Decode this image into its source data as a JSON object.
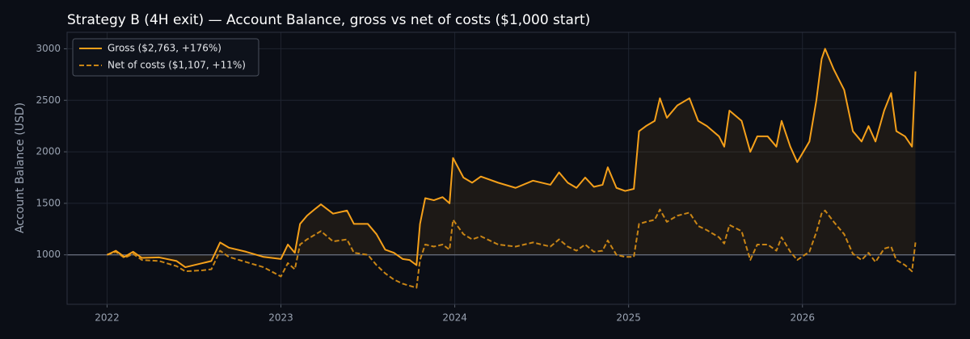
{
  "chart_data": {
    "type": "line",
    "title": "Strategy B (4H exit) — Account Balance, gross vs net of costs ($1,000 start)",
    "y_label": "Account Balance (USD)",
    "x": [
      2022.0,
      2022.05,
      2022.1,
      2022.15,
      2022.2,
      2022.3,
      2022.4,
      2022.45,
      2022.55,
      2022.6,
      2022.65,
      2022.7,
      2022.8,
      2022.9,
      2023.0,
      2023.04,
      2023.08,
      2023.11,
      2023.15,
      2023.2,
      2023.23,
      2023.3,
      2023.38,
      2023.42,
      2023.5,
      2023.55,
      2023.6,
      2023.65,
      2023.7,
      2023.74,
      2023.78,
      2023.8,
      2023.83,
      2023.88,
      2023.93,
      2023.97,
      2023.99,
      2024.05,
      2024.1,
      2024.15,
      2024.25,
      2024.35,
      2024.45,
      2024.55,
      2024.6,
      2024.65,
      2024.7,
      2024.75,
      2024.8,
      2024.85,
      2024.88,
      2024.93,
      2024.98,
      2025.03,
      2025.06,
      2025.1,
      2025.15,
      2025.18,
      2025.22,
      2025.28,
      2025.35,
      2025.4,
      2025.45,
      2025.52,
      2025.55,
      2025.58,
      2025.65,
      2025.7,
      2025.74,
      2025.8,
      2025.85,
      2025.88,
      2025.93,
      2025.97,
      2026.04,
      2026.08,
      2026.11,
      2026.13,
      2026.18,
      2026.24,
      2026.29,
      2026.34,
      2026.38,
      2026.42,
      2026.47,
      2026.51,
      2026.54,
      2026.59,
      2026.63,
      2026.65
    ],
    "series": [
      {
        "name": "Gross ($2,763, +176%)",
        "color": "#f5a01a",
        "dash": false,
        "fill": true,
        "values": [
          1000,
          1040,
          980,
          1030,
          970,
          975,
          940,
          880,
          920,
          940,
          1120,
          1070,
          1030,
          980,
          960,
          1100,
          1020,
          1300,
          1380,
          1450,
          1490,
          1400,
          1430,
          1300,
          1300,
          1200,
          1050,
          1020,
          960,
          950,
          900,
          1300,
          1550,
          1530,
          1560,
          1500,
          1940,
          1750,
          1700,
          1760,
          1700,
          1650,
          1720,
          1680,
          1800,
          1700,
          1650,
          1750,
          1660,
          1680,
          1850,
          1650,
          1620,
          1640,
          2200,
          2250,
          2300,
          2520,
          2330,
          2450,
          2520,
          2300,
          2250,
          2150,
          2050,
          2400,
          2300,
          2000,
          2150,
          2150,
          2050,
          2300,
          2050,
          1900,
          2100,
          2500,
          2900,
          3000,
          2800,
          2600,
          2200,
          2100,
          2250,
          2100,
          2400,
          2570,
          2200,
          2150,
          2050,
          2780
        ]
      },
      {
        "name": "Net of costs ($1,107, +11%)",
        "color": "#c98515",
        "dash": true,
        "fill": false,
        "values": [
          1000,
          1030,
          970,
          1010,
          950,
          940,
          890,
          840,
          850,
          860,
          1040,
          980,
          930,
          880,
          790,
          920,
          860,
          1100,
          1150,
          1200,
          1230,
          1130,
          1150,
          1020,
          1000,
          900,
          820,
          760,
          720,
          700,
          680,
          950,
          1100,
          1080,
          1100,
          1050,
          1340,
          1200,
          1150,
          1180,
          1100,
          1080,
          1120,
          1080,
          1150,
          1080,
          1040,
          1100,
          1030,
          1040,
          1140,
          1000,
          980,
          980,
          1300,
          1320,
          1340,
          1440,
          1320,
          1380,
          1410,
          1280,
          1240,
          1170,
          1110,
          1290,
          1230,
          950,
          1100,
          1100,
          1040,
          1170,
          1030,
          950,
          1030,
          1220,
          1400,
          1430,
          1320,
          1200,
          1010,
          950,
          1020,
          930,
          1060,
          1080,
          950,
          900,
          840,
          1120
        ]
      }
    ],
    "reference_line": 1000,
    "xlim": [
      2021.77,
      2026.88
    ],
    "ylim": [
      520,
      3160
    ],
    "xticks": [
      2022,
      2023,
      2024,
      2025,
      2026
    ],
    "yticks": [
      1000,
      1500,
      2000,
      2500,
      3000
    ],
    "grid": true,
    "legend": "upper left"
  }
}
